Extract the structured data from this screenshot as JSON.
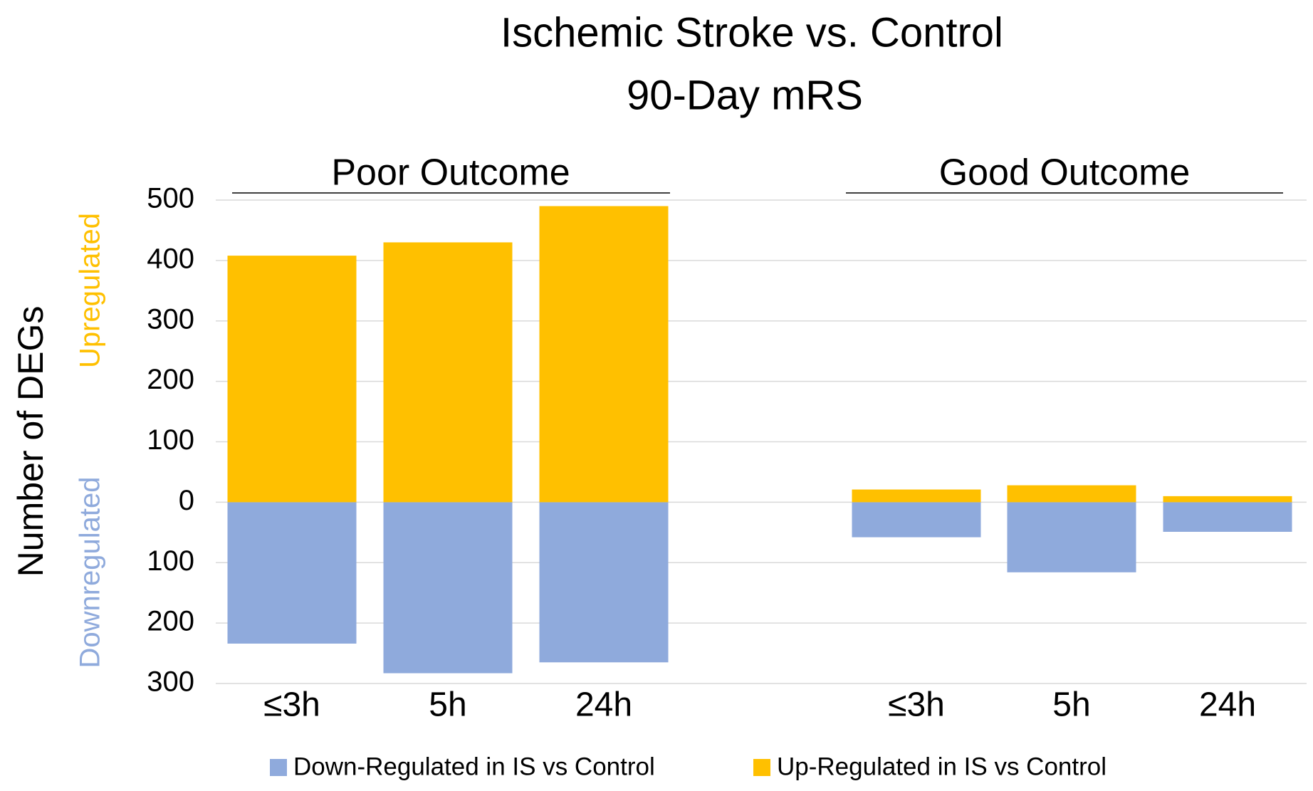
{
  "chart_data": {
    "type": "bar",
    "stacked": true,
    "title": [
      "Ischemic Stroke vs. Control",
      "90-Day mRS"
    ],
    "ylabel": "Number of DEGs",
    "annotations": {
      "up": "Upregulated",
      "down": "Downregulated"
    },
    "groups": [
      "Poor Outcome",
      "Good Outcome"
    ],
    "categories": [
      "≤3h",
      "5h",
      "24h",
      "≤3h",
      "5h",
      "24h"
    ],
    "series": [
      {
        "name": "Down-Regulated in IS vs Control",
        "color": "#8FAADC",
        "values": [
          -234,
          -283,
          -265,
          -58,
          -116,
          -49
        ]
      },
      {
        "name": "Up-Regulated in IS vs Control",
        "color": "#FFC000",
        "values": [
          408,
          430,
          490,
          21,
          28,
          10
        ]
      }
    ],
    "ylim": [
      -300,
      500
    ],
    "yticks": [
      {
        "value": -300,
        "label": "300"
      },
      {
        "value": -200,
        "label": "200"
      },
      {
        "value": -100,
        "label": "100"
      },
      0,
      100,
      200,
      300,
      400,
      500
    ],
    "grid": true,
    "legend": "bottom"
  }
}
